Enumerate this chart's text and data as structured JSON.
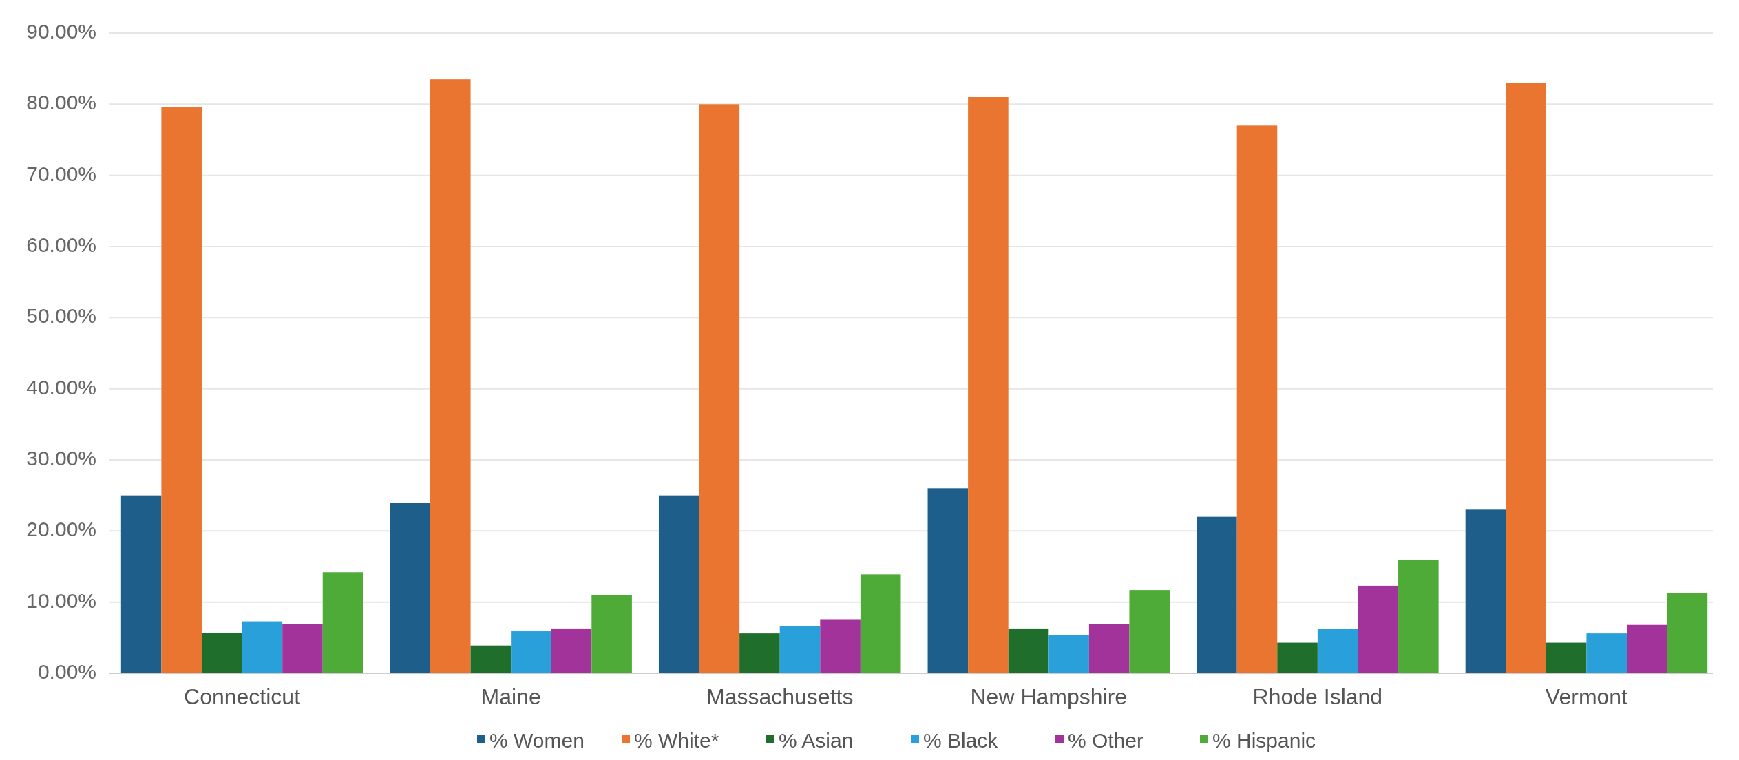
{
  "chart_data": {
    "type": "bar",
    "categories": [
      "Connecticut",
      "Maine",
      "Massachusetts",
      "New Hampshire",
      "Rhode Island",
      "Vermont"
    ],
    "series": [
      {
        "name": "% Women",
        "color": "#1d5f8a",
        "values": [
          25,
          24,
          25,
          26,
          22,
          23
        ]
      },
      {
        "name": "% White*",
        "color": "#e97530",
        "values": [
          79.6,
          83.5,
          80,
          81,
          77,
          83
        ]
      },
      {
        "name": "% Asian",
        "color": "#1f6e2b",
        "values": [
          5.7,
          3.9,
          5.6,
          6.3,
          4.3,
          4.3
        ]
      },
      {
        "name": "% Black",
        "color": "#2aa0da",
        "values": [
          7.3,
          5.9,
          6.6,
          5.4,
          6.2,
          5.6
        ]
      },
      {
        "name": "% Other",
        "color": "#a2339b",
        "values": [
          6.9,
          6.3,
          7.6,
          6.9,
          12.3,
          6.8
        ]
      },
      {
        "name": "% Hispanic",
        "color": "#4eab37",
        "values": [
          14.2,
          11,
          13.9,
          11.7,
          15.9,
          11.3
        ]
      }
    ],
    "ylim": [
      0,
      90
    ],
    "yticks": [
      {
        "value": 0,
        "label": "0.00%"
      },
      {
        "value": 10,
        "label": "10.00%"
      },
      {
        "value": 20,
        "label": "20.00%"
      },
      {
        "value": 30,
        "label": "30.00%"
      },
      {
        "value": 40,
        "label": "40.00%"
      },
      {
        "value": 50,
        "label": "50.00%"
      },
      {
        "value": 60,
        "label": "60.00%"
      },
      {
        "value": 70,
        "label": "70.00%"
      },
      {
        "value": 80,
        "label": "80.00%"
      },
      {
        "value": 90,
        "label": "90.00%"
      }
    ],
    "grid": "y",
    "legend": "bottom"
  }
}
